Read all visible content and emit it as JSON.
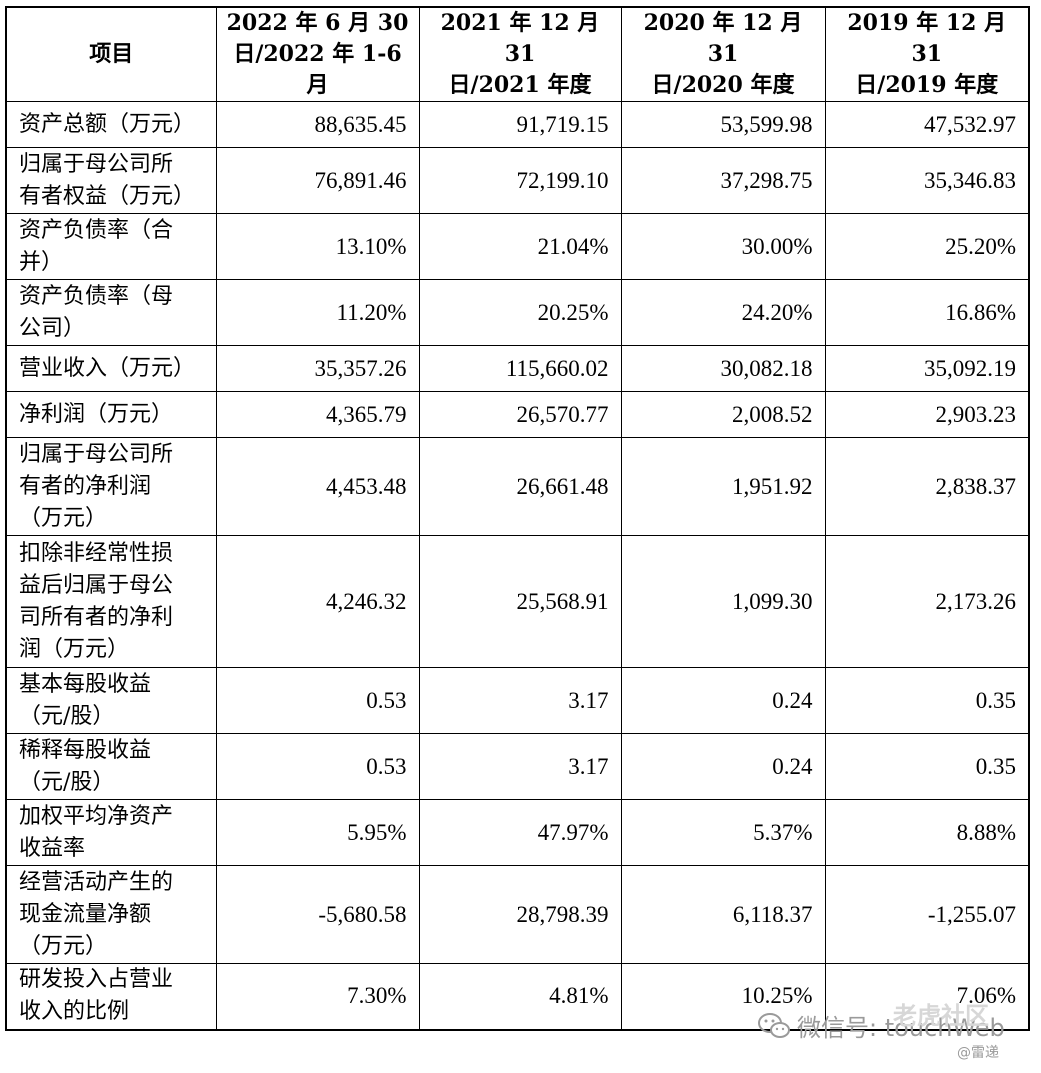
{
  "table": {
    "headers": [
      [
        "项目"
      ],
      [
        "2022 年 6 月 30",
        "日/2022 年 1-6 月"
      ],
      [
        "2021 年 12 月 31",
        "日/2021 年度"
      ],
      [
        "2020 年 12 月 31",
        "日/2020 年度"
      ],
      [
        "2019 年 12 月 31",
        "日/2019 年度"
      ]
    ],
    "rows": [
      {
        "label": [
          "资产总额（万元）"
        ],
        "values": [
          "88,635.45",
          "91,719.15",
          "53,599.98",
          "47,532.97"
        ]
      },
      {
        "label": [
          "归属于母公司所",
          "有者权益（万元）"
        ],
        "values": [
          "76,891.46",
          "72,199.10",
          "37,298.75",
          "35,346.83"
        ]
      },
      {
        "label": [
          "资产负债率（合",
          "并）"
        ],
        "values": [
          "13.10%",
          "21.04%",
          "30.00%",
          "25.20%"
        ]
      },
      {
        "label": [
          "资产负债率（母",
          "公司）"
        ],
        "values": [
          "11.20%",
          "20.25%",
          "24.20%",
          "16.86%"
        ]
      },
      {
        "label": [
          "营业收入（万元）"
        ],
        "values": [
          "35,357.26",
          "115,660.02",
          "30,082.18",
          "35,092.19"
        ]
      },
      {
        "label": [
          "净利润（万元）"
        ],
        "values": [
          "4,365.79",
          "26,570.77",
          "2,008.52",
          "2,903.23"
        ]
      },
      {
        "label": [
          "归属于母公司所",
          "有者的净利润",
          "（万元）"
        ],
        "values": [
          "4,453.48",
          "26,661.48",
          "1,951.92",
          "2,838.37"
        ]
      },
      {
        "label": [
          "扣除非经常性损",
          "益后归属于母公",
          "司所有者的净利",
          "润（万元）"
        ],
        "values": [
          "4,246.32",
          "25,568.91",
          "1,099.30",
          "2,173.26"
        ]
      },
      {
        "label": [
          "基本每股收益",
          "（元/股）"
        ],
        "values": [
          "0.53",
          "3.17",
          "0.24",
          "0.35"
        ]
      },
      {
        "label": [
          "稀释每股收益",
          "（元/股）"
        ],
        "values": [
          "0.53",
          "3.17",
          "0.24",
          "0.35"
        ]
      },
      {
        "label": [
          "加权平均净资产",
          "收益率"
        ],
        "values": [
          "5.95%",
          "47.97%",
          "5.37%",
          "8.88%"
        ]
      },
      {
        "label": [
          "经营活动产生的",
          "现金流量净额",
          "（万元）"
        ],
        "values": [
          "-5,680.58",
          "28,798.39",
          "6,118.37",
          "-1,255.07"
        ]
      },
      {
        "label": [
          "研发投入占营业",
          "收入的比例"
        ],
        "values": [
          "7.30%",
          "4.81%",
          "10.25%",
          "7.06%"
        ]
      }
    ]
  },
  "watermark": {
    "text": "微信号: touchWeb",
    "brand": "老虎社区",
    "sub": "@雷递",
    "icon": "wechat-icon"
  }
}
